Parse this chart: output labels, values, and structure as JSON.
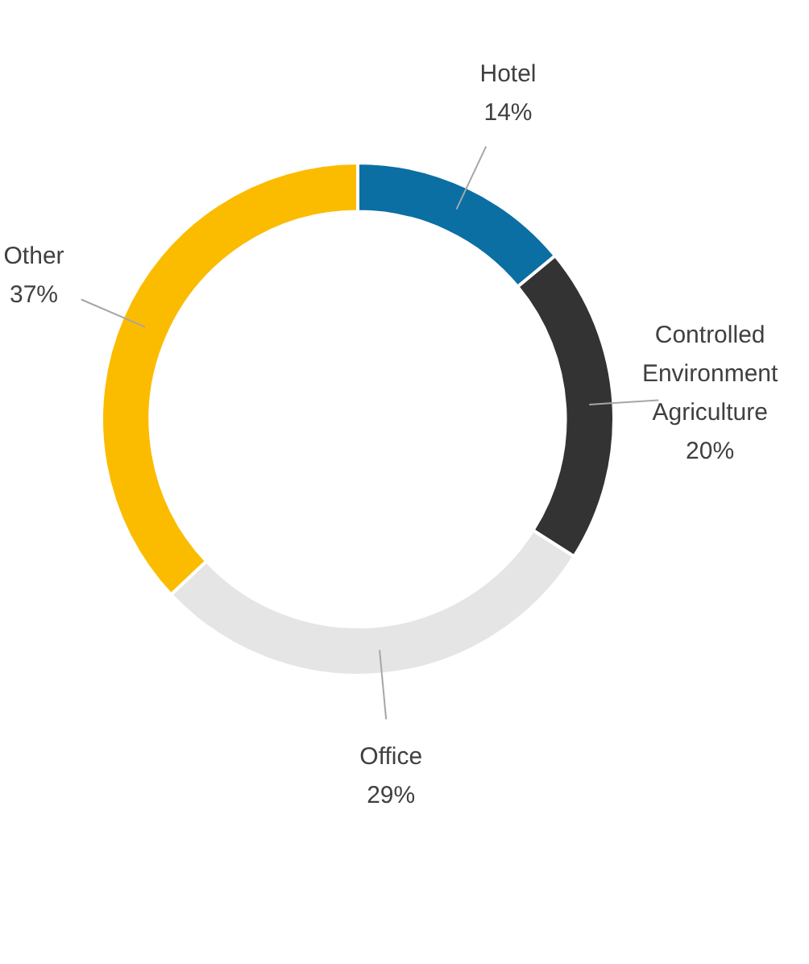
{
  "chart_data": {
    "type": "donut",
    "categories": [
      "Hotel",
      "Controlled Environment Agriculture",
      "Office",
      "Other"
    ],
    "values": [
      14,
      20,
      29,
      37
    ],
    "colors": [
      "#0b6fa4",
      "#333333",
      "#e5e5e5",
      "#fbbc00"
    ],
    "value_labels": [
      "14%",
      "20%",
      "29%",
      "37%"
    ],
    "legend": false
  }
}
